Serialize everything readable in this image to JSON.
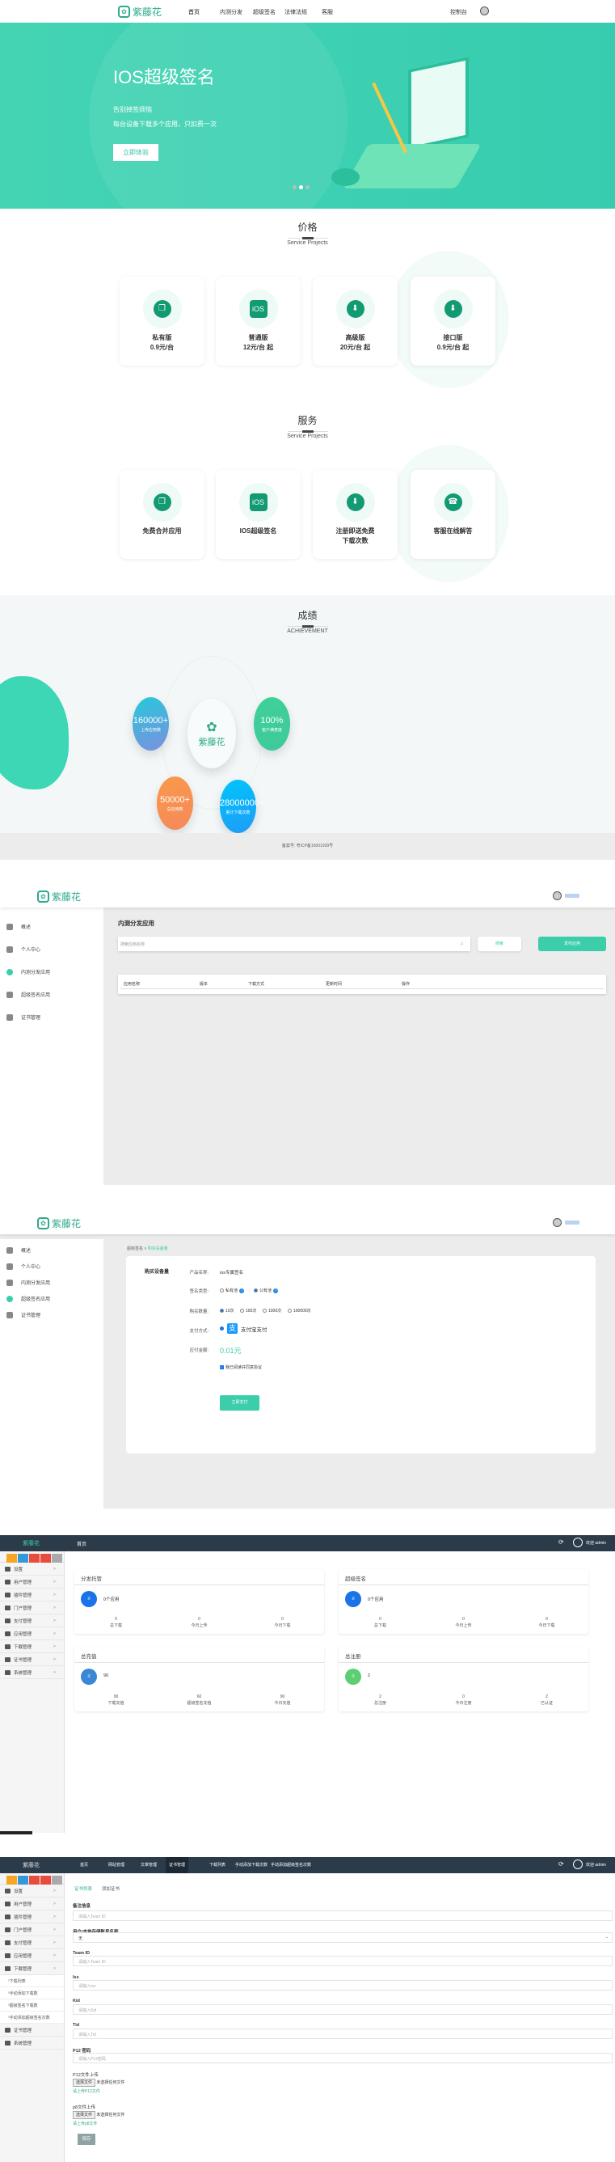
{
  "landing": {
    "brand": "紫藤花",
    "nav": [
      "首页",
      "内测分发",
      "超级签名",
      "法律法规",
      "客服"
    ],
    "console_link": "控制台",
    "hero": {
      "title": "IOS超级签名",
      "line1": "告别掉签烦恼",
      "line2": "每台设备下载多个应用，只扣费一次",
      "cta": "立即体验",
      "slides": 3,
      "active_slide": 2
    },
    "pricing": {
      "title": "价格",
      "subtitle": "Service Projects",
      "cards": [
        {
          "icon": "copy-icon",
          "name": "私有版",
          "price": "0.9元/台"
        },
        {
          "icon": "ios-icon",
          "name": "普通版",
          "price": "12元/台 起"
        },
        {
          "icon": "cloud-download-icon",
          "name": "高级版",
          "price": "20元/台 起"
        },
        {
          "icon": "cloud-download-icon",
          "name": "接口版",
          "price": "0.9元/台 起"
        }
      ]
    },
    "services": {
      "title": "服务",
      "subtitle": "Service Projects",
      "cards": [
        {
          "icon": "copy-icon",
          "name": "免费合并应用",
          "name2": ""
        },
        {
          "icon": "ios-icon",
          "name": "IOS超级签名",
          "name2": ""
        },
        {
          "icon": "cloud-download-icon",
          "name": "注册即送免费",
          "name2": "下载次数"
        },
        {
          "icon": "support-chat-icon",
          "name": "客服在线解答",
          "name2": ""
        }
      ]
    },
    "achievement": {
      "title": "成绩",
      "subtitle": "ACHIEVEMENT",
      "center": "紫藤花",
      "stats": [
        {
          "value": "160000+",
          "label": "上传应用数",
          "color": "#7d8fe0"
        },
        {
          "value": "100%",
          "label": "客户满意度",
          "color": "#3fc99a"
        },
        {
          "value": "50000+",
          "label": "总应用数",
          "color": "#f6885a"
        },
        {
          "value": "28000000+",
          "label": "累计下载次数",
          "color": "#1e9bf8"
        }
      ]
    },
    "footer": "备案号: 粤ICP备16001939号"
  },
  "console1": {
    "brand": "紫藤花",
    "sidebar": [
      "概述",
      "个人中心",
      "内测分发应用",
      "超级签名应用",
      "证书管理"
    ],
    "active": 2,
    "title": "内测分发应用",
    "search_placeholder": "搜索应用名称",
    "search_btn": "搜索",
    "publish_btn": "发布应用",
    "columns": [
      "应用名称",
      "版本",
      "下载方式",
      "更新时间",
      "操作"
    ]
  },
  "console2": {
    "brand": "紫藤花",
    "sidebar": [
      "概述",
      "个人中心",
      "内测分发应用",
      "超级签名应用",
      "证书管理"
    ],
    "active": 3,
    "breadcrumb": {
      "parent": "超级签名",
      "sep": ">",
      "current": "购买设备量"
    },
    "card_title": "购买设备量",
    "form": {
      "product_label": "产品名称:",
      "product": "ios专属签名",
      "type_label": "签名类型:",
      "types": [
        "私有池",
        "公有池"
      ],
      "type_selected": 1,
      "qty_label": "购买数量:",
      "qtys": [
        "10次",
        "100次",
        "1000次",
        "100000次"
      ],
      "qty_selected": 0,
      "pay_label": "支付方式:",
      "pay": "支付宝支付",
      "amount_label": "应付金额:",
      "amount": "0.01元",
      "agree": "我已阅读并同意协议",
      "agree_checked": true,
      "submit": "立即支付"
    }
  },
  "admin1": {
    "brand": "紫藤花",
    "top_nav": [
      "首页"
    ],
    "user": "欢迎 admin",
    "sidebar": [
      "设置",
      "用户管理",
      "插件管理",
      "门户管理",
      "支付管理",
      "应用管理",
      "下载管理",
      "证书管理",
      "系统管理"
    ],
    "cards": [
      {
        "title": "分发托管",
        "main": "0个应用",
        "color": "#1a73e8",
        "stats": [
          [
            "0",
            "总下载"
          ],
          [
            "0",
            "今日上传"
          ],
          [
            "0",
            "今日下载"
          ]
        ]
      },
      {
        "title": "超级签名",
        "main": "0个应用",
        "color": "#1a73e8",
        "stats": [
          [
            "0",
            "总下载"
          ],
          [
            "0",
            "今日上传"
          ],
          [
            "0",
            "今日下载"
          ]
        ]
      },
      {
        "title": "总充值",
        "main": "90",
        "color": "#3a87d6",
        "stats": [
          [
            "90",
            "下载充值"
          ],
          [
            "60",
            "超级签名充值"
          ],
          [
            "90",
            "今日充值"
          ]
        ]
      },
      {
        "title": "总注册",
        "main": "2",
        "color": "#5ccf72",
        "stats": [
          [
            "2",
            "总注册"
          ],
          [
            "0",
            "今日注册"
          ],
          [
            "2",
            "已认证"
          ]
        ]
      }
    ]
  },
  "admin2": {
    "brand": "紫藤花",
    "user": "欢迎 admin",
    "top_nav": [
      "首页",
      "网站管理",
      "文章管理",
      "证书管理",
      "下载列表",
      "手动添加下载次数",
      "手动添加超级签名次数"
    ],
    "top_active": 3,
    "sidebar": [
      "设置",
      "用户管理",
      "插件管理",
      "门户管理",
      "支付管理",
      "应用管理",
      "下载管理"
    ],
    "sub": [
      "下载列表",
      "手动添加下载数",
      "超级签名下载数",
      "手动添加超级签名次数"
    ],
    "sidebar_after": [
      "证书管理",
      "系统管理"
    ],
    "tabs": [
      "证书列表",
      "添加证书"
    ],
    "fields": [
      {
        "label": "备注信息",
        "placeholder": "请输入Team ID"
      },
      {
        "label": "用户/本地存储账号名称",
        "value": "无"
      },
      {
        "label": "Team ID",
        "placeholder": "请输入Team ID"
      },
      {
        "label": "Iss",
        "placeholder": "请输入Iss"
      },
      {
        "label": "Kid",
        "placeholder": "请输入Kid"
      },
      {
        "label": "Tid",
        "placeholder": "请输入Tid"
      },
      {
        "label": "P12 密码",
        "placeholder": "请输入P12密码"
      }
    ],
    "uploads": [
      {
        "label": "P12文件上传",
        "button": "选择文件",
        "status": "未选择任何文件",
        "hint": "请上传P12文件"
      },
      {
        "label": "p8文件上传",
        "button": "选择文件",
        "status": "未选择任何文件",
        "hint": "请上传p8文件"
      }
    ],
    "save": "保存"
  },
  "colors": {
    "brand": "#2fa98a",
    "teal": "#3ccdaa",
    "admin_bar": "#2c3b4a"
  }
}
